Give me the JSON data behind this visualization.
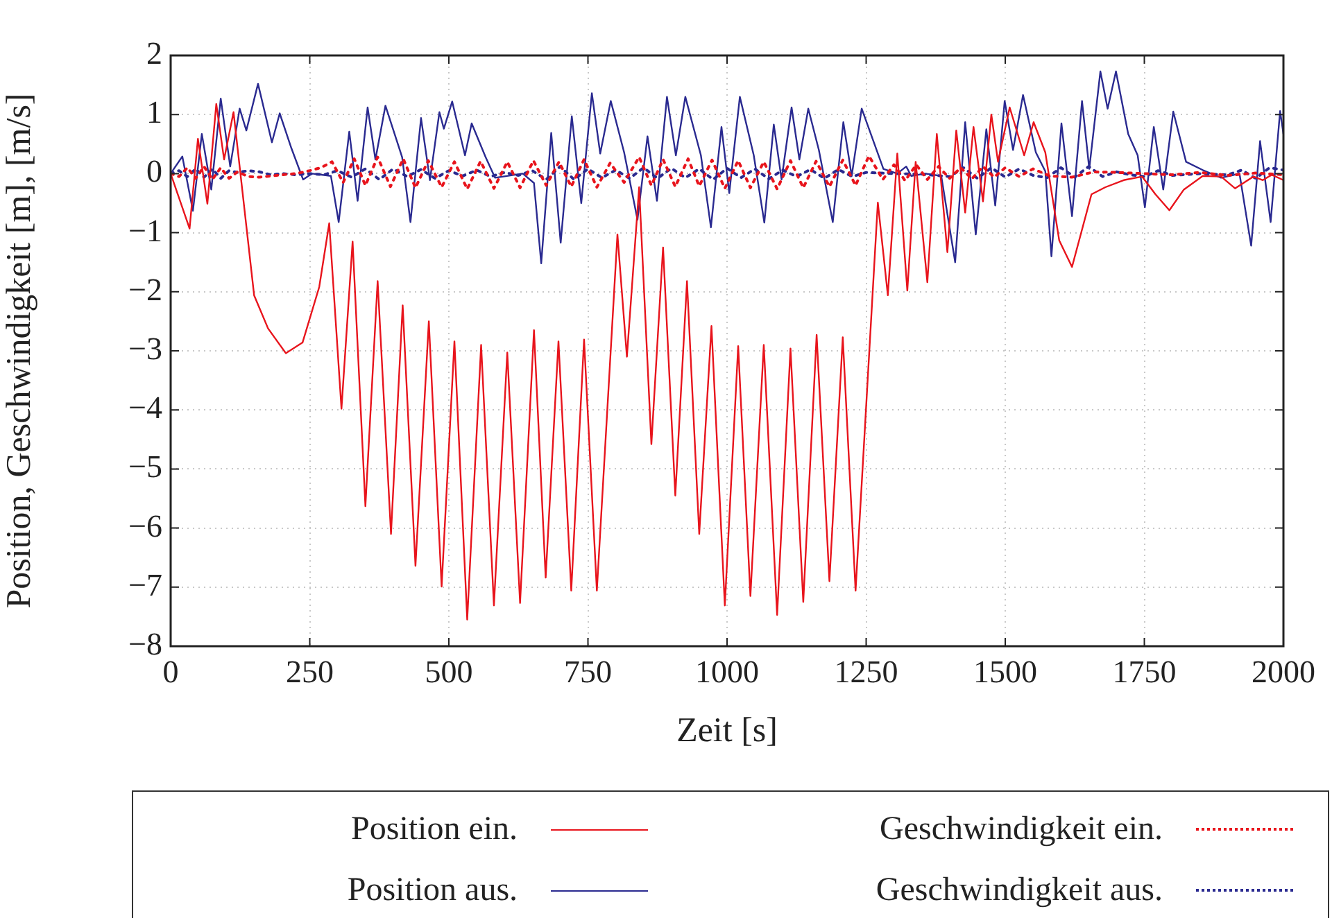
{
  "chart_data": {
    "type": "line",
    "xlabel": "Zeit [s]",
    "ylabel": "Position, Geschwindigkeit [m], [m/s]",
    "xlim": [
      0,
      2000
    ],
    "xticks": [
      0,
      250,
      500,
      750,
      1000,
      1250,
      1500,
      1750,
      2000
    ],
    "ylim": [
      -8,
      2
    ],
    "yticks": [
      -8,
      -7,
      -6,
      -5,
      -4,
      -3,
      -2,
      -1,
      0,
      1,
      2
    ],
    "grid": true,
    "legend": "bottom",
    "marker": "none",
    "series": [
      {
        "name": "Position ein.",
        "color": "#e8141c",
        "line_style": "solid",
        "x": [
          0,
          34,
          49,
          66,
          82,
          96,
          113,
          150,
          175,
          207,
          237,
          267,
          285,
          307,
          327,
          350,
          372,
          396,
          417,
          440,
          464,
          487,
          510,
          533,
          558,
          581,
          605,
          628,
          653,
          674,
          697,
          720,
          743,
          766,
          803,
          820,
          842,
          864,
          885,
          907,
          928,
          950,
          972,
          996,
          1020,
          1042,
          1066,
          1090,
          1114,
          1137,
          1161,
          1184,
          1208,
          1231,
          1271,
          1289,
          1306,
          1324,
          1339,
          1360,
          1377,
          1396,
          1412,
          1428,
          1443,
          1460,
          1475,
          1487,
          1508,
          1534,
          1551,
          1572,
          1597,
          1620,
          1655,
          1680,
          1713,
          1746,
          1770,
          1795,
          1821,
          1855,
          1888,
          1913,
          1946,
          1963,
          1979,
          2000
        ],
        "values": [
          0,
          -0.93,
          0.59,
          -0.51,
          1.18,
          0.24,
          1.04,
          -2.06,
          -2.62,
          -3.04,
          -2.86,
          -1.92,
          -0.84,
          -3.98,
          -1.15,
          -5.63,
          -1.82,
          -6.1,
          -2.23,
          -6.64,
          -2.5,
          -6.99,
          -2.84,
          -7.55,
          -2.9,
          -7.31,
          -3.03,
          -7.27,
          -2.65,
          -6.84,
          -2.84,
          -7.06,
          -2.81,
          -7.06,
          -1.03,
          -3.1,
          -0.23,
          -4.58,
          -1.25,
          -5.45,
          -1.82,
          -6.1,
          -2.58,
          -7.31,
          -2.92,
          -7.15,
          -2.9,
          -7.47,
          -2.96,
          -7.25,
          -2.73,
          -6.9,
          -2.77,
          -7.06,
          -0.49,
          -2.06,
          0.34,
          -1.98,
          0.2,
          -1.84,
          0.67,
          -1.33,
          0.73,
          -0.66,
          0.79,
          -0.47,
          1.0,
          0.2,
          1.12,
          0.31,
          0.87,
          0.36,
          -1.13,
          -1.58,
          -0.35,
          -0.23,
          -0.11,
          -0.05,
          -0.35,
          -0.62,
          -0.27,
          -0.04,
          -0.05,
          -0.25,
          -0.05,
          -0.11,
          -0.02,
          -0.11
        ]
      },
      {
        "name": "Geschwindigkeit ein.",
        "color": "#e8141c",
        "line_style": "dotted",
        "x": [
          0,
          15,
          30,
          45,
          60,
          75,
          90,
          105,
          120,
          140,
          160,
          180,
          200,
          225,
          250,
          270,
          290,
          310,
          330,
          350,
          372,
          395,
          418,
          440,
          463,
          487,
          510,
          533,
          557,
          581,
          605,
          628,
          652,
          675,
          698,
          720,
          743,
          766,
          790,
          815,
          842,
          864,
          885,
          907,
          930,
          950,
          973,
          996,
          1020,
          1042,
          1066,
          1090,
          1114,
          1137,
          1160,
          1184,
          1208,
          1231,
          1255,
          1280,
          1300,
          1320,
          1340,
          1360,
          1380,
          1400,
          1420,
          1440,
          1460,
          1480,
          1500,
          1525,
          1550,
          1580,
          1620,
          1660,
          1700,
          1750,
          1800,
          1850,
          1900,
          1950,
          2000
        ],
        "values": [
          0,
          -0.05,
          0.1,
          -0.08,
          0.12,
          -0.1,
          0.1,
          -0.08,
          0.03,
          -0.05,
          -0.06,
          -0.04,
          -0.02,
          0,
          0.05,
          0.1,
          0.2,
          -0.15,
          0.25,
          -0.2,
          0.28,
          -0.22,
          0.25,
          -0.24,
          0.22,
          -0.23,
          0.2,
          -0.26,
          0.21,
          -0.25,
          0.2,
          -0.24,
          0.22,
          -0.2,
          0.2,
          -0.22,
          0.24,
          -0.23,
          0.18,
          -0.15,
          0.28,
          -0.2,
          0.24,
          -0.22,
          0.25,
          -0.21,
          0.23,
          -0.25,
          0.22,
          -0.24,
          0.2,
          -0.26,
          0.22,
          -0.24,
          0.21,
          -0.22,
          0.23,
          -0.2,
          0.3,
          -0.1,
          0.15,
          -0.12,
          0.15,
          -0.1,
          0.12,
          -0.08,
          0.1,
          -0.09,
          0.12,
          -0.06,
          0.1,
          -0.05,
          0.08,
          -0.04,
          -0.06,
          0.03,
          0.02,
          0,
          -0.02,
          0.02,
          -0.03,
          0.01,
          -0.02
        ]
      },
      {
        "name": "Position aus.",
        "color": "#2a2a90",
        "line_style": "solid",
        "x": [
          0,
          21,
          40,
          56,
          73,
          90,
          107,
          124,
          136,
          157,
          182,
          196,
          217,
          238,
          254,
          288,
          302,
          321,
          336,
          354,
          368,
          386,
          416,
          431,
          450,
          466,
          483,
          491,
          506,
          529,
          541,
          566,
          583,
          633,
          653,
          666,
          684,
          701,
          721,
          738,
          757,
          772,
          791,
          815,
          839,
          857,
          874,
          892,
          908,
          925,
          953,
          971,
          990,
          1004,
          1023,
          1048,
          1067,
          1084,
          1098,
          1116,
          1130,
          1146,
          1165,
          1190,
          1209,
          1224,
          1242,
          1281,
          1306,
          1322,
          1331,
          1356,
          1385,
          1410,
          1428,
          1447,
          1466,
          1482,
          1499,
          1514,
          1532,
          1555,
          1572,
          1583,
          1601,
          1620,
          1638,
          1651,
          1671,
          1684,
          1699,
          1721,
          1738,
          1751,
          1767,
          1784,
          1802,
          1825,
          1855,
          1888,
          1921,
          1942,
          1958,
          1977,
          1994,
          2000
        ],
        "values": [
          0,
          0.29,
          -0.63,
          0.67,
          -0.27,
          1.27,
          0.12,
          1.1,
          0.73,
          1.52,
          0.53,
          1.02,
          0.43,
          -0.1,
          0,
          -0.04,
          -0.82,
          0.71,
          -0.46,
          1.12,
          0.24,
          1.15,
          0.28,
          -0.82,
          0.94,
          -0.11,
          1.04,
          0.76,
          1.22,
          0.31,
          0.85,
          0.28,
          -0.07,
          0,
          -0.16,
          -1.52,
          0.69,
          -1.17,
          0.97,
          -0.5,
          1.36,
          0.34,
          1.23,
          0.36,
          -0.78,
          0.63,
          -0.46,
          1.3,
          0.31,
          1.3,
          0.31,
          -0.91,
          0.79,
          -0.33,
          1.3,
          0.31,
          -0.83,
          0.83,
          -0.1,
          1.12,
          0.24,
          1.1,
          0.4,
          -0.82,
          0.87,
          -0.04,
          1.1,
          0.08,
          0,
          0.12,
          -0.04,
          0,
          -0.04,
          -1.5,
          0.87,
          -1.03,
          0.75,
          -0.54,
          1.23,
          0.4,
          1.33,
          0.36,
          0.04,
          -1.4,
          0.85,
          -0.72,
          1.23,
          0.08,
          1.73,
          1.1,
          1.73,
          0.67,
          0.31,
          -0.57,
          0.79,
          -0.27,
          1.05,
          0.2,
          0.06,
          -0.07,
          0,
          -1.22,
          0.55,
          -0.82,
          1.06,
          0.67
        ]
      },
      {
        "name": "Geschwindigkeit aus.",
        "color": "#2a2a90",
        "line_style": "dotted",
        "x": [
          0,
          15,
          30,
          45,
          60,
          75,
          90,
          105,
          120,
          140,
          160,
          180,
          200,
          225,
          250,
          275,
          300,
          325,
          350,
          375,
          400,
          425,
          450,
          475,
          500,
          525,
          550,
          575,
          600,
          625,
          650,
          675,
          700,
          725,
          750,
          775,
          800,
          825,
          850,
          875,
          900,
          925,
          950,
          975,
          1000,
          1025,
          1050,
          1075,
          1100,
          1125,
          1150,
          1175,
          1200,
          1225,
          1250,
          1300,
          1350,
          1400,
          1425,
          1450,
          1475,
          1500,
          1525,
          1550,
          1575,
          1600,
          1625,
          1650,
          1675,
          1700,
          1725,
          1750,
          1775,
          1800,
          1850,
          1900,
          1925,
          1950,
          1975,
          2000
        ],
        "values": [
          0,
          0.05,
          -0.05,
          0.08,
          -0.06,
          0.08,
          -0.08,
          0.05,
          0.02,
          0.05,
          0.03,
          -0.02,
          0,
          -0.02,
          0,
          -0.02,
          0.05,
          -0.06,
          0.08,
          -0.1,
          0.08,
          -0.05,
          0.07,
          -0.08,
          0.05,
          -0.04,
          0.06,
          -0.05,
          0.02,
          -0.03,
          0.05,
          -0.1,
          0.12,
          -0.1,
          0.08,
          -0.07,
          0.06,
          -0.08,
          0.1,
          -0.08,
          0.09,
          -0.07,
          0.08,
          -0.1,
          0.09,
          -0.07,
          0.08,
          -0.09,
          0.06,
          -0.05,
          0.07,
          -0.08,
          0.07,
          -0.05,
          0.02,
          0,
          -0.01,
          -0.05,
          0.1,
          -0.08,
          0.1,
          -0.06,
          0.08,
          -0.03,
          -0.07,
          0.1,
          -0.06,
          0.12,
          -0.05,
          0.03,
          -0.02,
          -0.05,
          0.05,
          -0.03,
          0,
          -0.02,
          0.06,
          -0.08,
          0.1,
          0.06
        ]
      }
    ]
  }
}
